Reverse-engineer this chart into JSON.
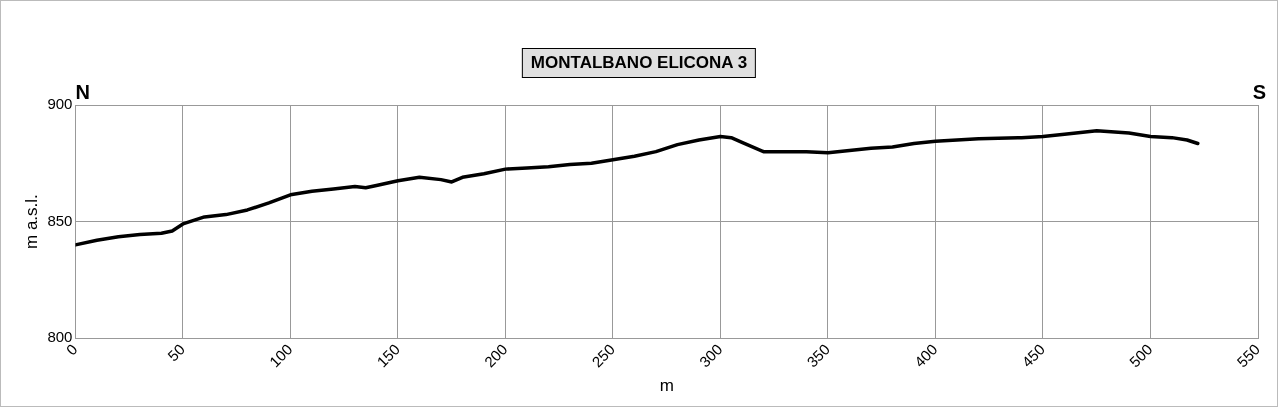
{
  "chart_data": {
    "type": "line",
    "title": "MONTALBANO ELICONA 3",
    "xlabel": "m",
    "ylabel": "m a.s.l.",
    "annotations": [
      "N",
      "S"
    ],
    "series": [
      {
        "color": "#000000",
        "x": [
          0,
          10,
          20,
          30,
          40,
          45,
          50,
          60,
          70,
          80,
          90,
          100,
          110,
          120,
          130,
          135,
          140,
          150,
          160,
          170,
          175,
          180,
          190,
          200,
          210,
          220,
          230,
          240,
          250,
          260,
          270,
          280,
          290,
          300,
          305,
          310,
          320,
          330,
          340,
          350,
          360,
          370,
          380,
          390,
          400,
          420,
          440,
          450,
          460,
          475,
          490,
          500,
          510,
          517,
          522
        ],
        "values": [
          840,
          842,
          843.5,
          844.5,
          845,
          846,
          849,
          852,
          853,
          855,
          858,
          861.5,
          863,
          864,
          865,
          864.5,
          865.5,
          867.5,
          869,
          868,
          867,
          869,
          870.5,
          872.5,
          873,
          873.5,
          874.5,
          875,
          876.5,
          878,
          880,
          883,
          885,
          886.5,
          886,
          884,
          880,
          880,
          880,
          879.5,
          880.5,
          881.5,
          882,
          883.5,
          884.5,
          885.5,
          886,
          886.5,
          887.5,
          889,
          888,
          886.5,
          886,
          885,
          883.5
        ]
      }
    ],
    "xlim": [
      0,
      550
    ],
    "xticks": [
      0,
      50,
      100,
      150,
      200,
      250,
      300,
      350,
      400,
      450,
      500,
      550
    ],
    "ylim": [
      800,
      900
    ],
    "yticks": [
      800,
      850,
      900
    ],
    "grid": true,
    "legend": false,
    "marker": "none",
    "line_style": "solid"
  }
}
